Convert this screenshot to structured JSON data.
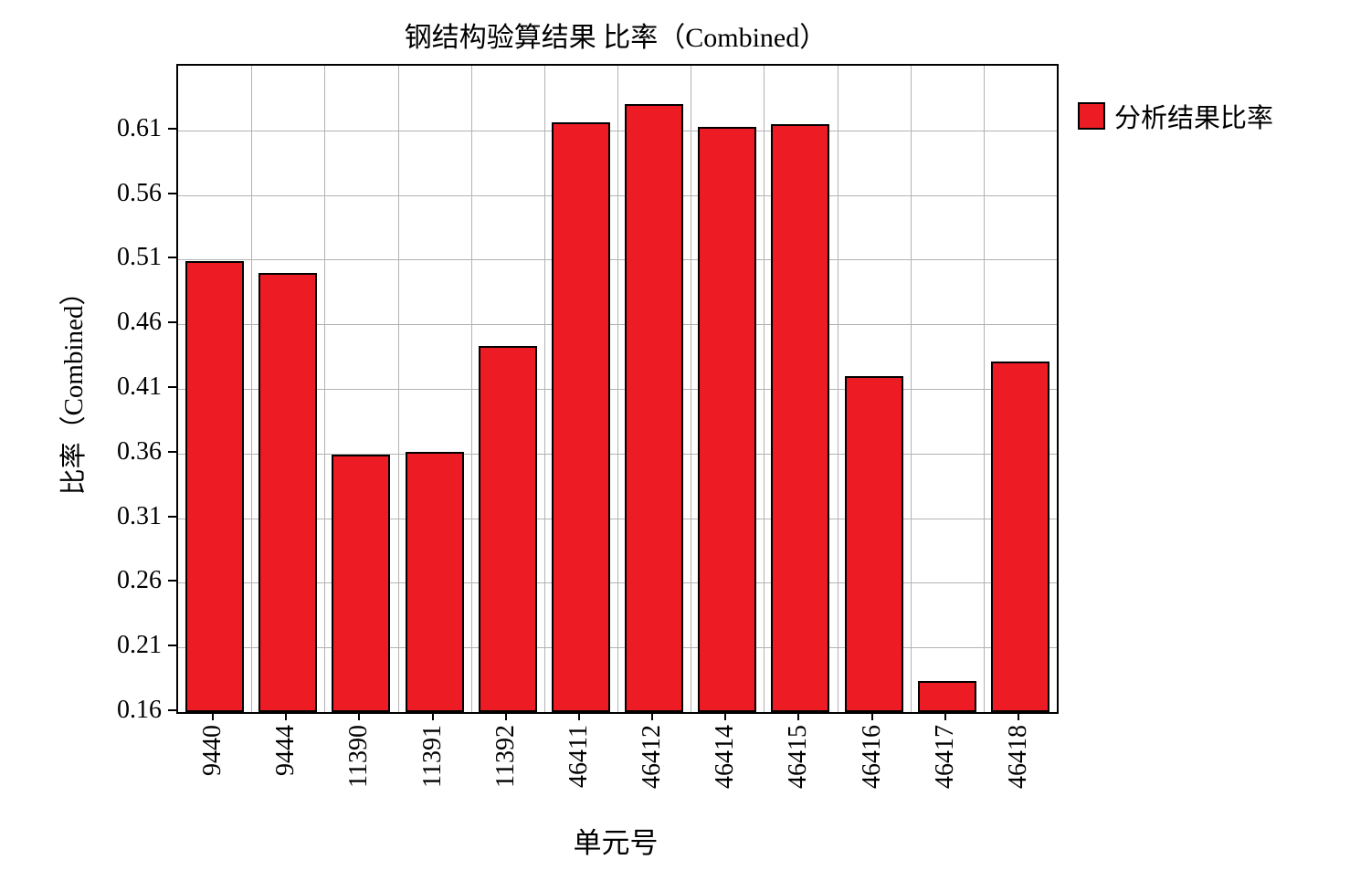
{
  "chart_data": {
    "type": "bar",
    "title": "钢结构验算结果 比率（Combined）",
    "xlabel": "单元号",
    "ylabel": "比率（Combined）",
    "legend": [
      {
        "label": "分析结果比率",
        "color": "#ed1c24"
      }
    ],
    "legend_position": "top-right-outside",
    "grid": true,
    "categories": [
      "9440",
      "9444",
      "11390",
      "11391",
      "11392",
      "46411",
      "46412",
      "46414",
      "46415",
      "46416",
      "46417",
      "46418"
    ],
    "values": [
      0.509,
      0.5,
      0.359,
      0.361,
      0.443,
      0.616,
      0.63,
      0.613,
      0.615,
      0.42,
      0.184,
      0.431
    ],
    "ylim": [
      0.16,
      0.66
    ],
    "y_ticks": [
      0.16,
      0.21,
      0.26,
      0.31,
      0.36,
      0.41,
      0.46,
      0.51,
      0.56,
      0.61
    ],
    "bar_color": "#ed1c24",
    "bar_border_color": "#000000",
    "gridline_color": "#b3b3b3"
  }
}
